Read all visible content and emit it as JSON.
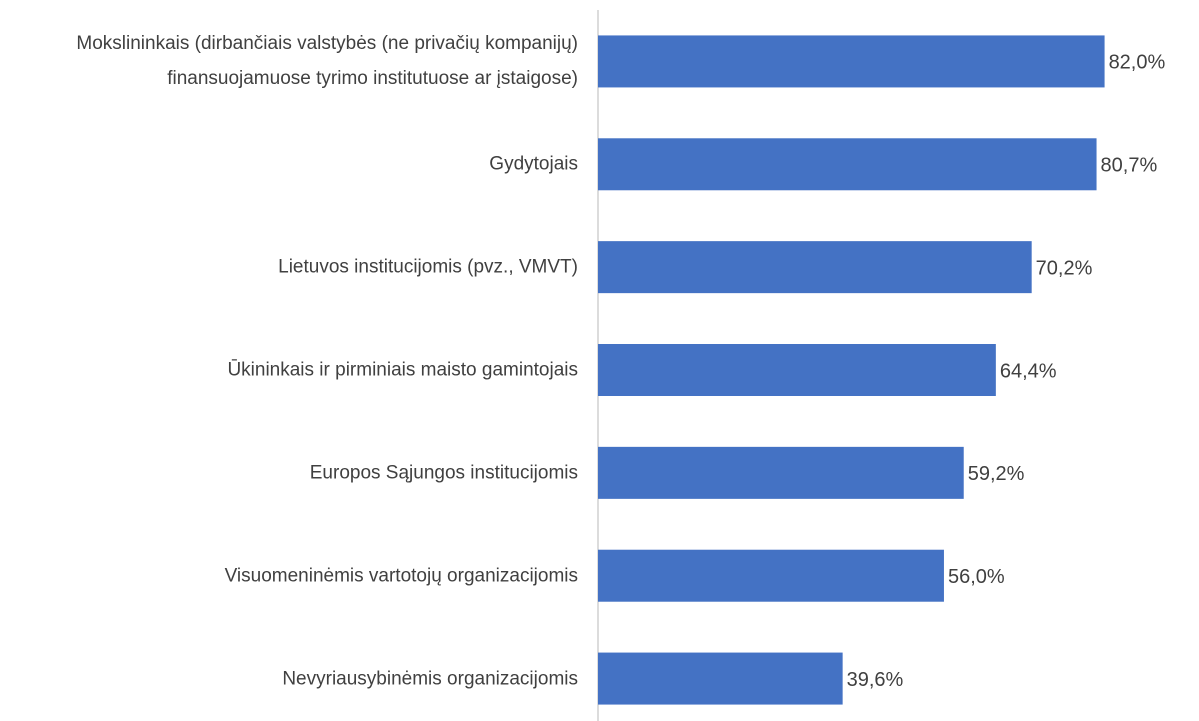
{
  "chart_data": {
    "type": "bar",
    "orientation": "horizontal",
    "categories": [
      "Mokslininkais (dirbančiais valstybės (ne privačių kompanijų) finansuojamuose tyrimo institutuose ar įstaigose)",
      "Gydytojais",
      "Lietuvos  institucijomis (pvz., VMVT)",
      "Ūkininkais ir pirminiais maisto gamintojais",
      "Europos Sąjungos institucijomis",
      "Visuomeninėmis vartotojų organizacijomis",
      "Nevyriausybinėmis organizacijomis"
    ],
    "values": [
      82.0,
      80.7,
      70.2,
      64.4,
      59.2,
      56.0,
      39.6
    ],
    "value_labels": [
      "82,0%",
      "80,7%",
      "70,2%",
      "64,4%",
      "59,2%",
      "56,0%",
      "39,6%"
    ],
    "color": "#4472c4",
    "xlim": [
      0,
      90
    ]
  }
}
